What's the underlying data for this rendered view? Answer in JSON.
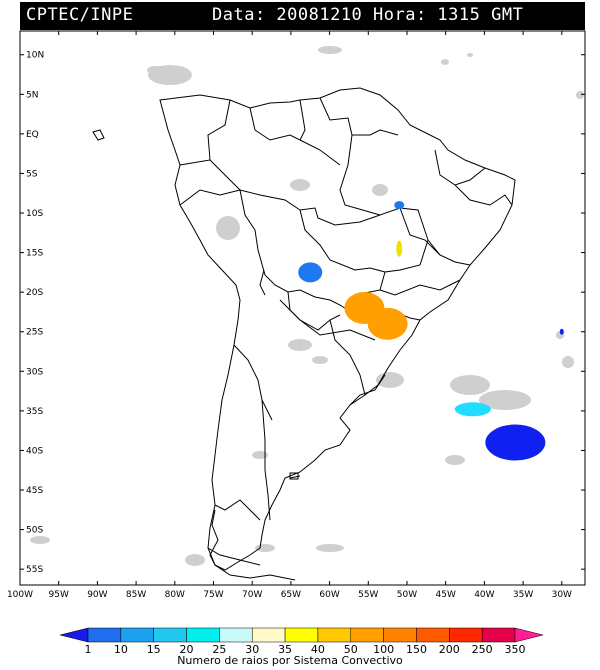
{
  "header": {
    "source": "CPTEC/INPE",
    "date_time": "Data: 20081210 Hora: 1315 GMT"
  },
  "map": {
    "lat_labels": [
      "10N",
      "5N",
      "EQ",
      "5S",
      "10S",
      "15S",
      "20S",
      "25S",
      "30S",
      "35S",
      "40S",
      "45S",
      "50S",
      "55S"
    ],
    "lon_labels": [
      "100W",
      "95W",
      "90W",
      "85W",
      "80W",
      "75W",
      "70W",
      "65W",
      "60W",
      "55W",
      "50W",
      "45W",
      "40W",
      "35W",
      "30W"
    ],
    "lat_range": [
      -57,
      13
    ],
    "lon_range": [
      -100,
      -27
    ],
    "cells": [
      {
        "lon": -62.5,
        "lat": -17.5,
        "level": 2,
        "color": "#1e78f0"
      },
      {
        "lon": -55.5,
        "lat": -22.0,
        "level": 7,
        "color": "#ffa000"
      },
      {
        "lon": -52.5,
        "lat": -24.0,
        "level": 7,
        "color": "#ffa000"
      },
      {
        "lon": -51.0,
        "lat": -9.0,
        "level": 2,
        "color": "#1e78f0"
      },
      {
        "lon": -51.0,
        "lat": -14.5,
        "level": 6,
        "color": "#f0e000"
      },
      {
        "lon": -41.5,
        "lat": -34.8,
        "level": 4,
        "color": "#22dcff"
      },
      {
        "lon": -36.0,
        "lat": -39.0,
        "level": 1,
        "color": "#1020f0"
      },
      {
        "lon": -30.0,
        "lat": -25.0,
        "level": 1,
        "color": "#1020f0"
      }
    ]
  },
  "colorbar": {
    "labels": [
      "1",
      "10",
      "15",
      "20",
      "25",
      "30",
      "35",
      "40",
      "50",
      "100",
      "150",
      "200",
      "250",
      "350"
    ],
    "colors": [
      "#1a1ae6",
      "#1e6ef0",
      "#1ea0f0",
      "#22c8f0",
      "#00f0f0",
      "#c8fafa",
      "#fffac8",
      "#ffff00",
      "#ffc800",
      "#ffa000",
      "#ff8200",
      "#ff5a00",
      "#ff2800",
      "#e6004a",
      "#ff1e96"
    ],
    "title": "Numero de raios por Sistema Convectivo"
  }
}
